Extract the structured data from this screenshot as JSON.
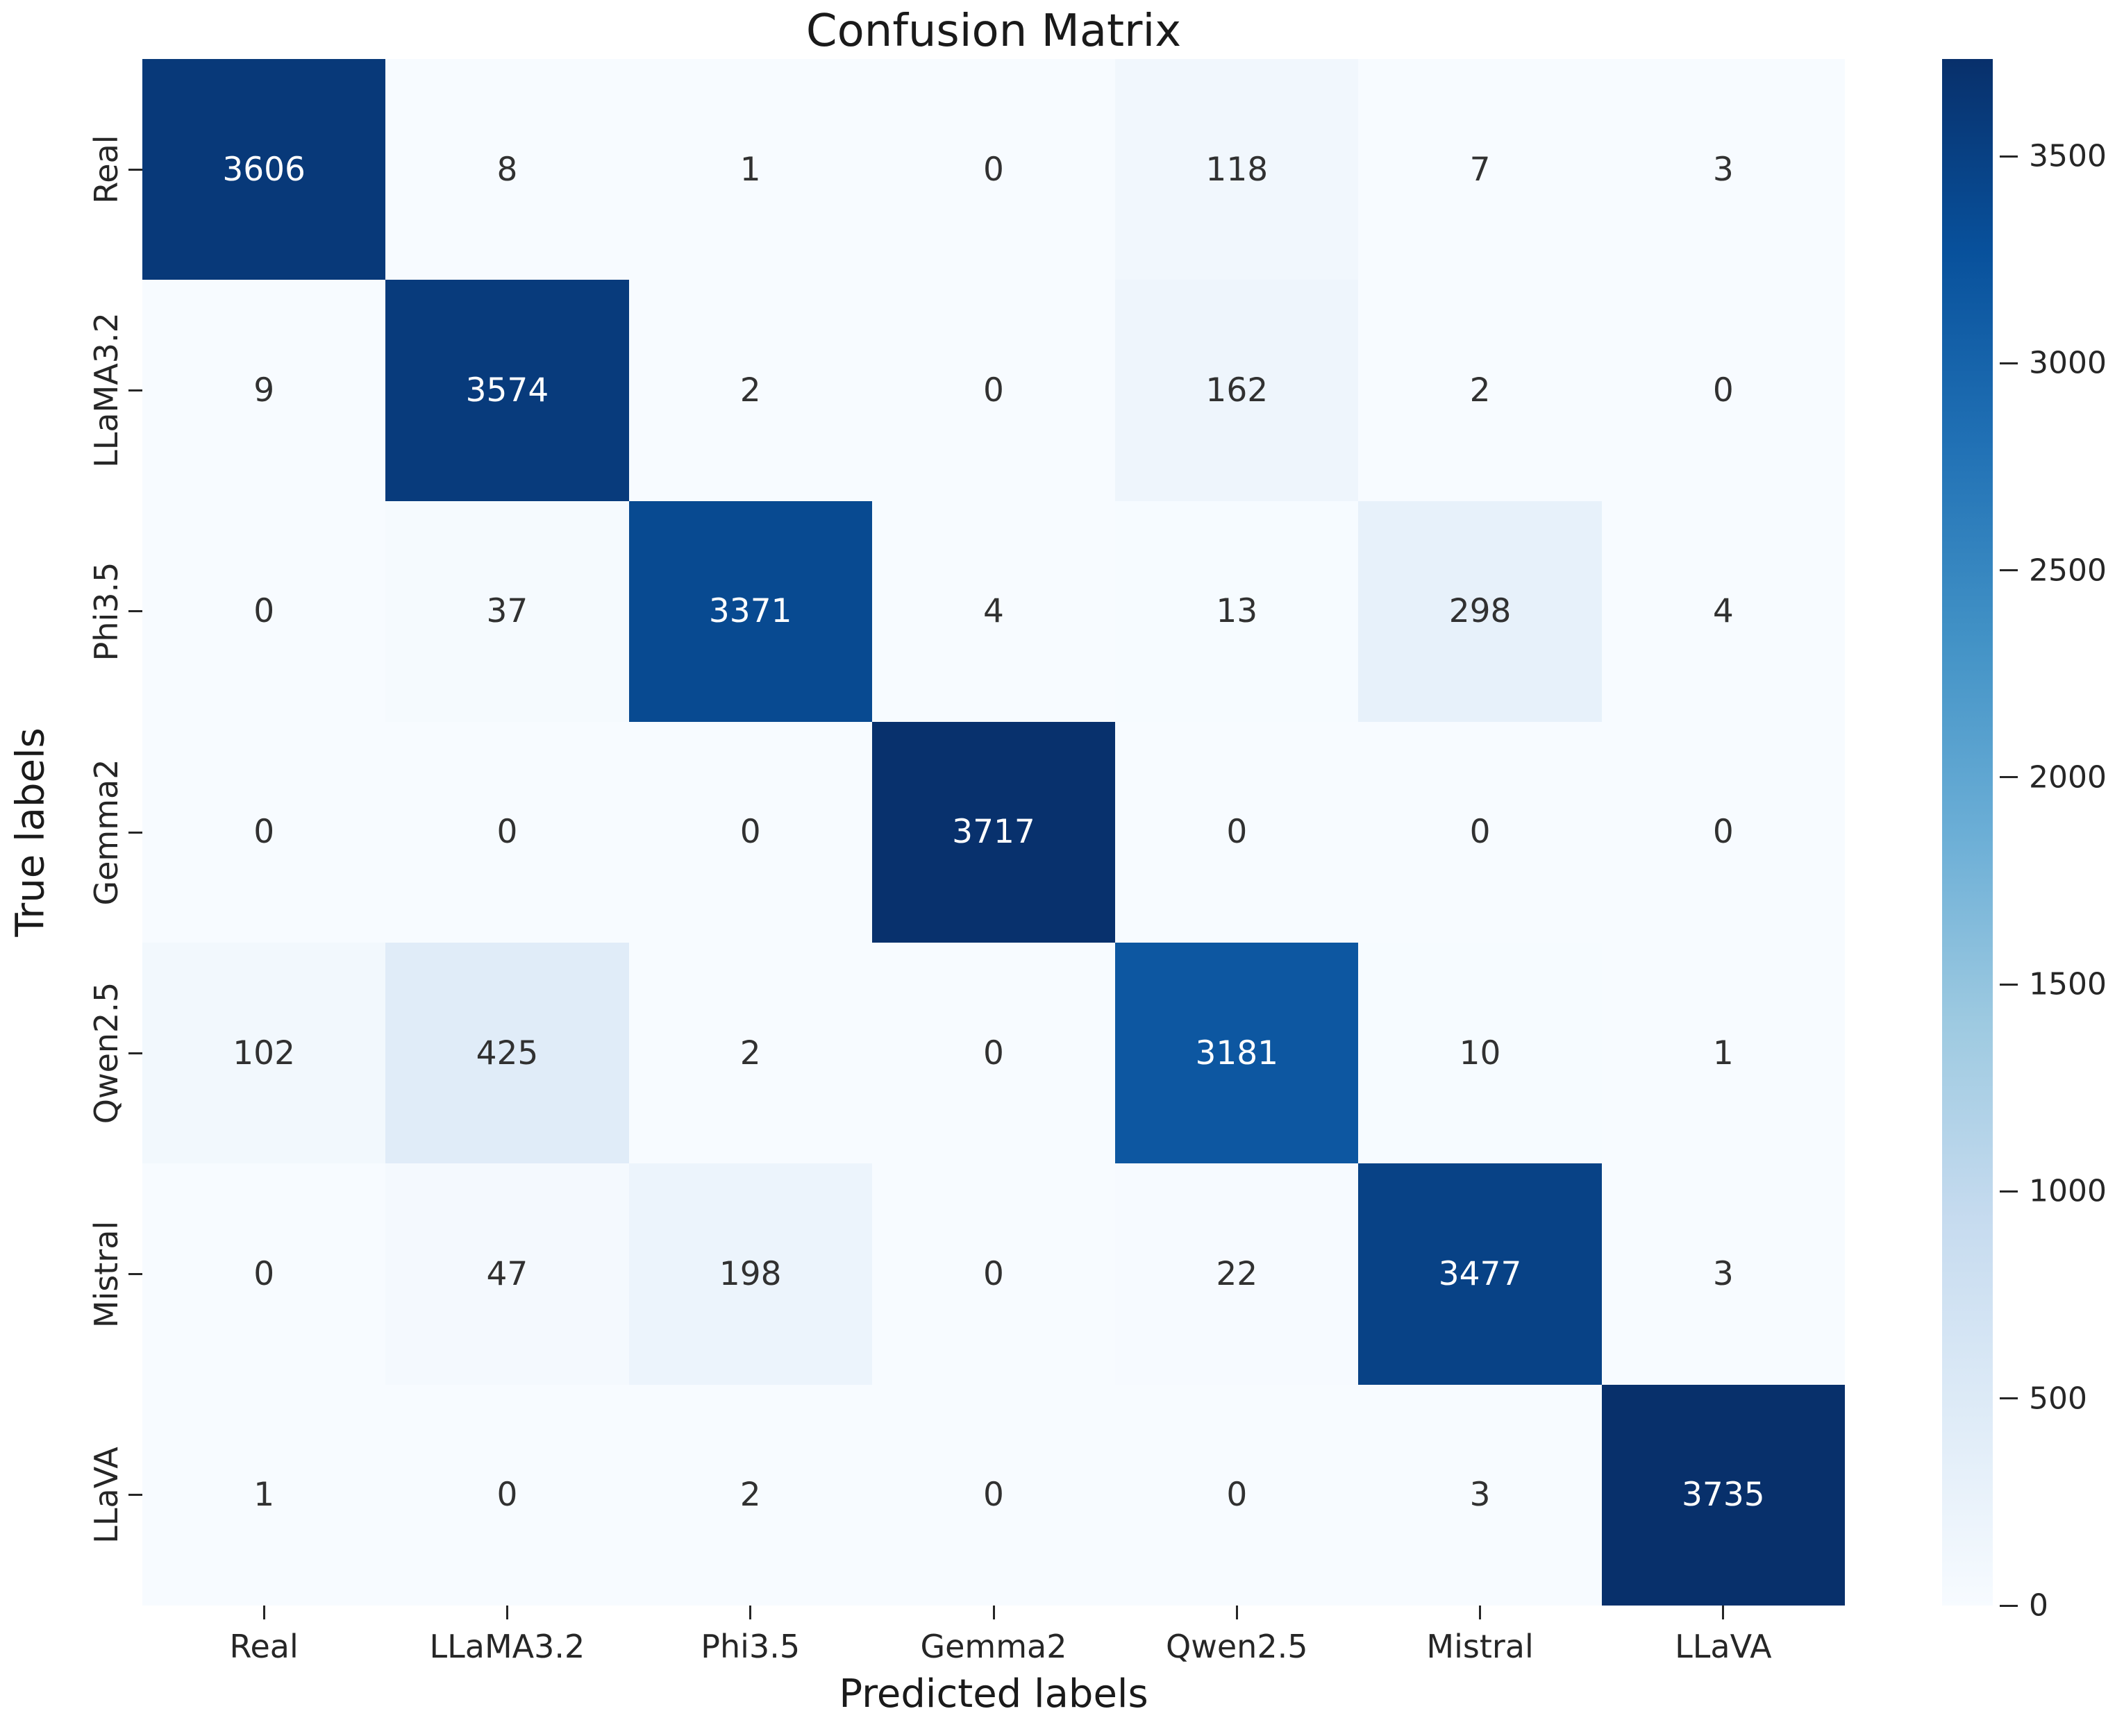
{
  "chart_data": {
    "type": "heatmap",
    "title": "Confusion Matrix",
    "xlabel": "Predicted labels",
    "ylabel": "True labels",
    "categories": [
      "Real",
      "LLaMA3.2",
      "Phi3.5",
      "Gemma2",
      "Qwen2.5",
      "Mistral",
      "LLaVA"
    ],
    "matrix": [
      [
        3606,
        8,
        1,
        0,
        118,
        7,
        3
      ],
      [
        9,
        3574,
        2,
        0,
        162,
        2,
        0
      ],
      [
        0,
        37,
        3371,
        4,
        13,
        298,
        4
      ],
      [
        0,
        0,
        0,
        3717,
        0,
        0,
        0
      ],
      [
        102,
        425,
        2,
        0,
        3181,
        10,
        1
      ],
      [
        0,
        47,
        198,
        0,
        22,
        3477,
        3
      ],
      [
        1,
        0,
        2,
        0,
        0,
        3,
        3735
      ]
    ],
    "colorbar": {
      "vmin": 0,
      "vmax": 3735,
      "ticks": [
        0,
        500,
        1000,
        1500,
        2000,
        2500,
        3000,
        3500
      ],
      "colormap": "Blues",
      "colormap_stops": [
        "#f7fbff",
        "#deebf7",
        "#c6dbef",
        "#9ecae1",
        "#6baed6",
        "#4292c6",
        "#2171b5",
        "#08519c",
        "#08306b"
      ]
    },
    "annotation_text_dark": "#313131",
    "annotation_text_light": "#ffffff",
    "legend_position": "right colorbar",
    "grid": false
  }
}
